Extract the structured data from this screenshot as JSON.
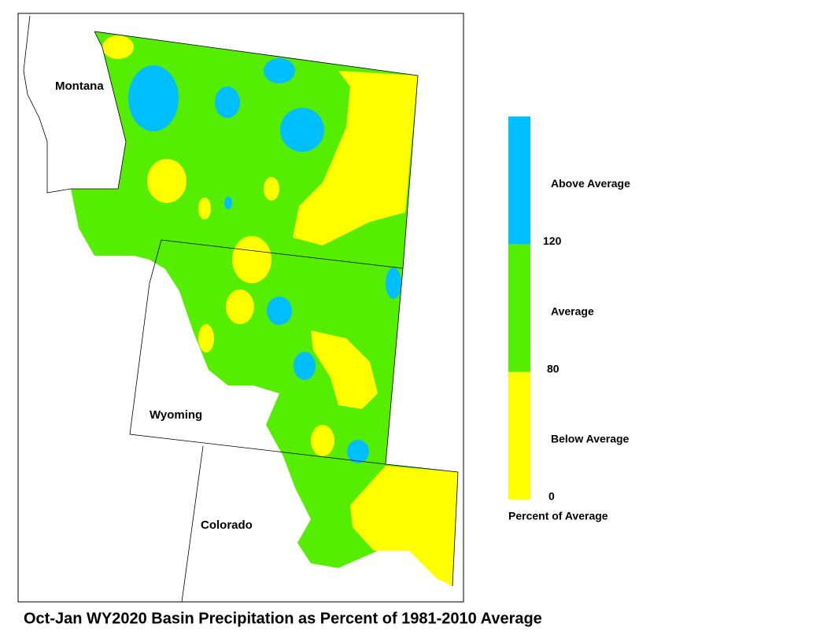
{
  "map": {
    "labels": [
      "Montana",
      "Wyoming",
      "Colorado"
    ]
  },
  "legend": {
    "ticks": [
      0,
      80,
      120
    ],
    "classes": [
      {
        "label": "Below Average",
        "color": "#ffff00"
      },
      {
        "label": "Average",
        "color": "#55ee00"
      },
      {
        "label": "Above Average",
        "color": "#00bfff"
      }
    ],
    "caption": "Percent of Average"
  },
  "title": "Oct-Jan WY2020 Basin Precipitation as Percent of 1981-2010 Average"
}
